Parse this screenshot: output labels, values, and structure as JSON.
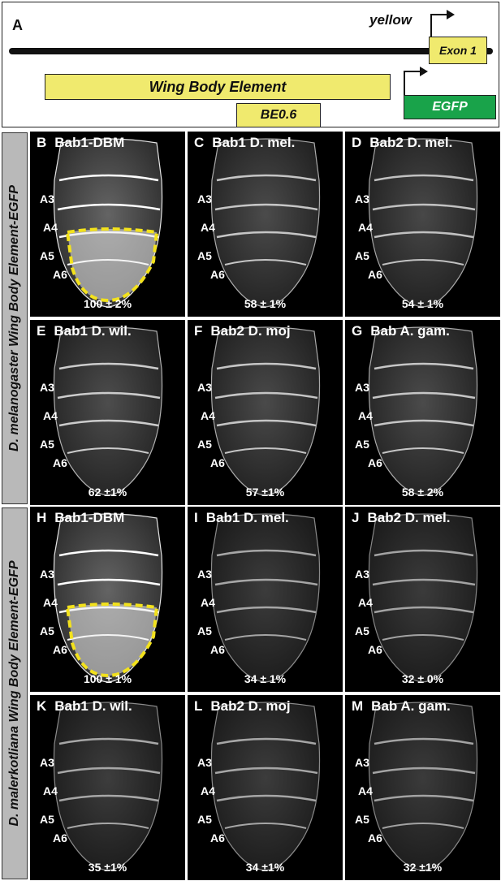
{
  "panelA": {
    "letter": "A",
    "gene": "yellow",
    "exon": "Exon 1",
    "wbe": "Wing Body Element",
    "be": "BE0.6",
    "reporter": "EGFP"
  },
  "sidebars": [
    "D. melanogaster Wing Body Element-EGFP",
    "D. malerkotliana Wing Body Element-EGFP"
  ],
  "segments": [
    "A3",
    "A4",
    "A5",
    "A6"
  ],
  "panels": [
    {
      "letter": "B",
      "label": "Bab1-DBM",
      "pct": "100 ± 2%",
      "brightness": 1.0,
      "highlight": true
    },
    {
      "letter": "C",
      "label": "Bab1 D. mel.",
      "pct": "58 ± 1%",
      "brightness": 0.58,
      "highlight": false
    },
    {
      "letter": "D",
      "label": "Bab2 D. mel.",
      "pct": "54 ± 1%",
      "brightness": 0.54,
      "highlight": false
    },
    {
      "letter": "E",
      "label": "Bab1 D. wil.",
      "pct": "62 ±1%",
      "brightness": 0.62,
      "highlight": false
    },
    {
      "letter": "F",
      "label": "Bab2 D. moj",
      "pct": "57 ±1%",
      "brightness": 0.57,
      "highlight": false
    },
    {
      "letter": "G",
      "label": "Bab A. gam.",
      "pct": "58 ± 2%",
      "brightness": 0.58,
      "highlight": false
    },
    {
      "letter": "H",
      "label": "Bab1-DBM",
      "pct": "100 ± 1%",
      "brightness": 1.0,
      "highlight": true
    },
    {
      "letter": "I",
      "label": "Bab1 D. mel.",
      "pct": "34 ± 1%",
      "brightness": 0.34,
      "highlight": false
    },
    {
      "letter": "J",
      "label": "Bab2 D. mel.",
      "pct": "32 ± 0%",
      "brightness": 0.32,
      "highlight": false
    },
    {
      "letter": "K",
      "label": "Bab1 D. wil.",
      "pct": "35 ±1%",
      "brightness": 0.35,
      "highlight": false
    },
    {
      "letter": "L",
      "label": "Bab2 D. moj",
      "pct": "34 ±1%",
      "brightness": 0.34,
      "highlight": false
    },
    {
      "letter": "M",
      "label": "Bab A. gam.",
      "pct": "32 ±1%",
      "brightness": 0.32,
      "highlight": false
    }
  ]
}
